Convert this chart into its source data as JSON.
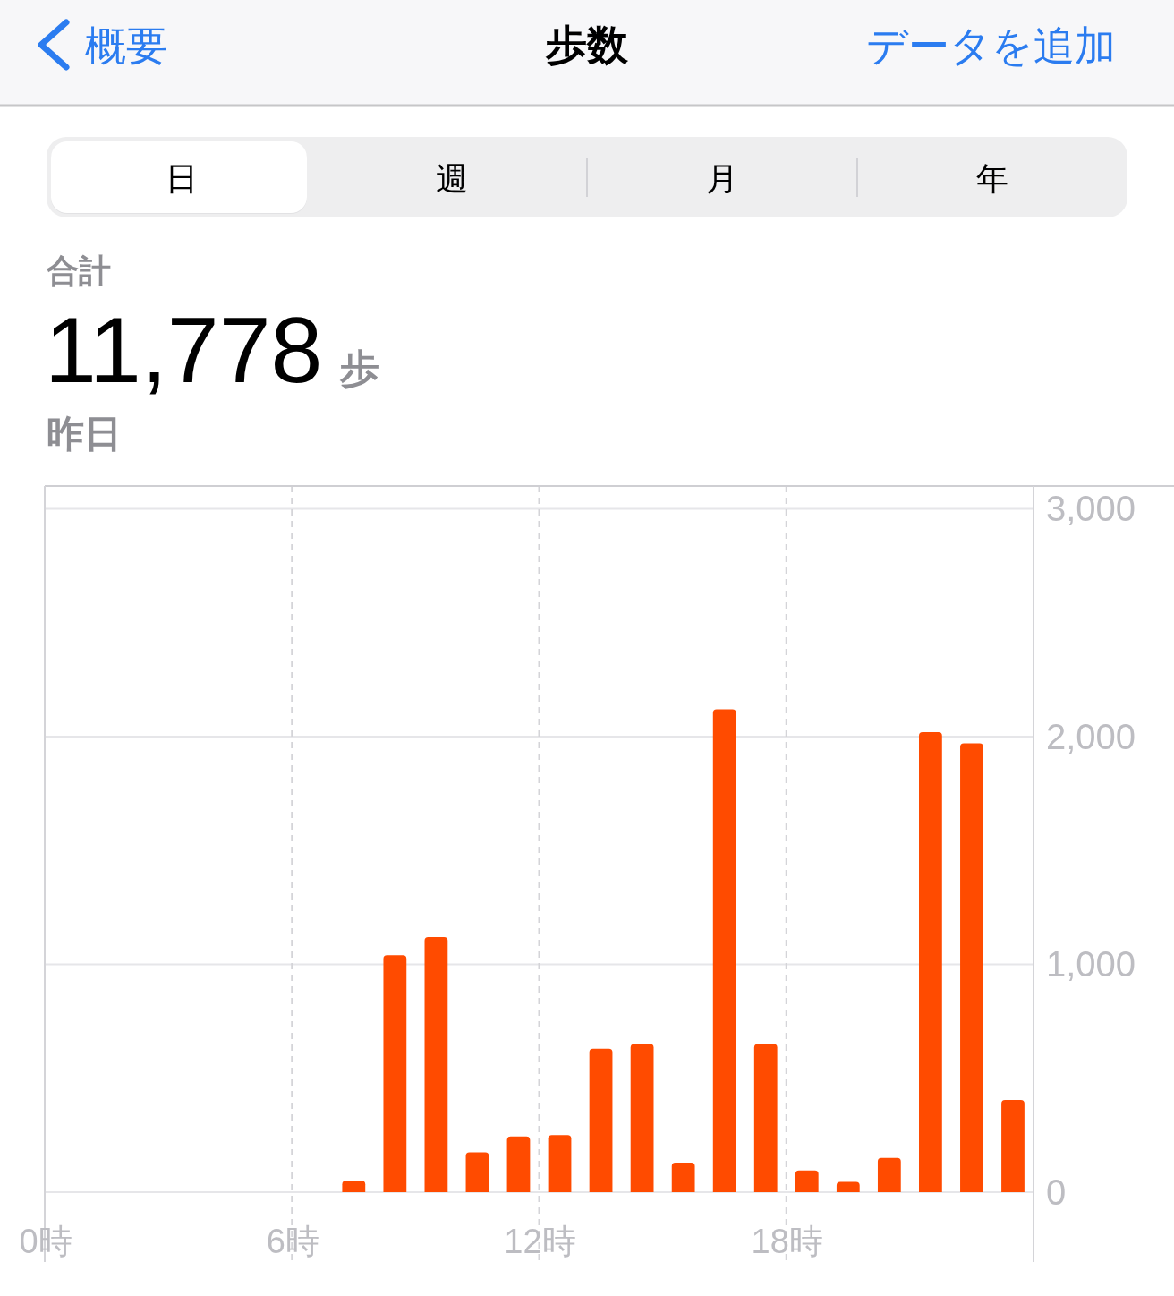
{
  "chart_data": {
    "type": "bar",
    "title": "歩数",
    "annotations": [
      "概要",
      "データを追加",
      "日",
      "週",
      "月",
      "年",
      "合計",
      "11,778",
      "歩",
      "昨日"
    ],
    "x": [
      7.5,
      8.5,
      9.5,
      10.5,
      11.5,
      12.5,
      13.5,
      14.5,
      15.5,
      16.5,
      17.5,
      18.5,
      19.5,
      20.5,
      21.5,
      22.5,
      23.5
    ],
    "values": [
      50,
      1040,
      1120,
      175,
      245,
      250,
      630,
      650,
      130,
      2120,
      650,
      95,
      45,
      150,
      2020,
      1970,
      405
    ],
    "color": "#ff4b00",
    "xlim": [
      0,
      24
    ],
    "xticks": [
      {
        "value": 0,
        "label": "0時"
      },
      {
        "value": 6,
        "label": "6時"
      },
      {
        "value": 12,
        "label": "12時"
      },
      {
        "value": 18,
        "label": "18時"
      }
    ],
    "ylim": [
      0,
      3100
    ],
    "yticks": [
      0,
      {
        "value": 1000,
        "label": "1,000"
      },
      {
        "value": 2000,
        "label": "2,000"
      },
      {
        "value": 3000,
        "label": "3,000"
      }
    ],
    "grid": true
  }
}
